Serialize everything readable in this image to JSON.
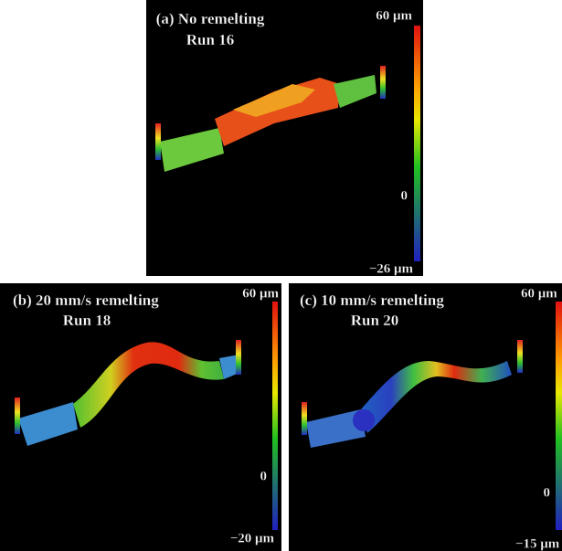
{
  "panels": [
    {
      "title": "(a) No remelting",
      "run": "Run 16",
      "scale_max": "60 μm",
      "scale_zero": "0",
      "scale_min": "−26 μm"
    },
    {
      "title": "(b) 20 mm/s remelting",
      "run": "Run 18",
      "scale_max": "60 μm",
      "scale_zero": "0",
      "scale_min": "−20 μm"
    },
    {
      "title": "(c) 10 mm/s remelting",
      "run": "Run 20",
      "scale_max": "60 μm",
      "scale_zero": "0",
      "scale_min": "−15 μm"
    }
  ]
}
